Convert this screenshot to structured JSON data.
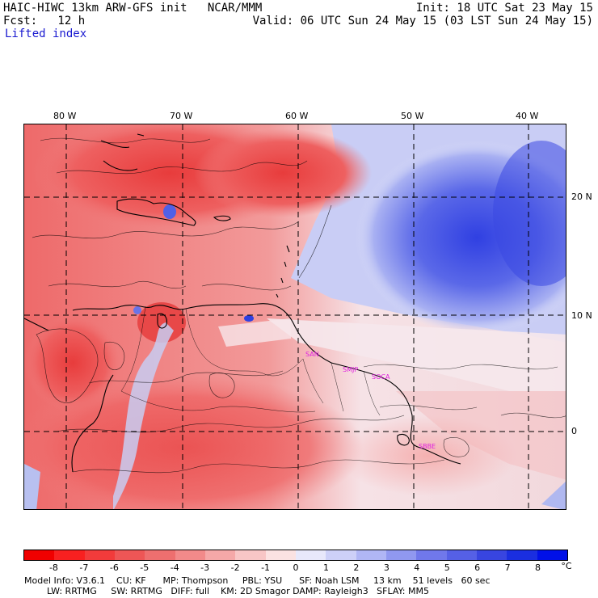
{
  "header": {
    "left1": "HAIC-HIWC 13km ARW-GFS init   NCAR/MMM",
    "left2": "Fcst:   12 h",
    "left3": "Lifted index",
    "right1": "Init: 18 UTC Sat 23 May 15",
    "right2": "Valid: 06 UTC Sun 24 May 15 (03 LST Sun 24 May 15)"
  },
  "map": {
    "lon_labels": [
      "80 W",
      "70 W",
      "60 W",
      "50 W",
      "40 W"
    ],
    "lat_labels": [
      "20 N",
      "10 N",
      "0"
    ],
    "cities": [
      "SAN",
      "SMJP",
      "SOCA",
      "SBBE"
    ],
    "colors": {
      "positive_strong": "#2a3ae0",
      "negative_strong": "#e83030",
      "neutral": "#f4f0f0",
      "city": "#e020e0"
    }
  },
  "colorbar": {
    "labels": [
      "-8",
      "-7",
      "-6",
      "-5",
      "-4",
      "-3",
      "-2",
      "-1",
      "0",
      "1",
      "2",
      "3",
      "4",
      "5",
      "6",
      "7",
      "8"
    ],
    "unit": "°C",
    "colors": [
      "#f00000",
      "#f82020",
      "#f23b3b",
      "#ee5656",
      "#ee6f6f",
      "#f28a8a",
      "#f5a8a8",
      "#f8c6c6",
      "#fbe2e2",
      "#e8e8fb",
      "#cdd0f8",
      "#b0b6f5",
      "#9098f0",
      "#7078eb",
      "#5560e6",
      "#3845e0",
      "#1a2ee0",
      "#0010e8"
    ]
  },
  "footer": {
    "line1": "Model Info: V3.6.1    CU: KF      MP: Thompson     PBL: YSU      SF: Noah LSM     13 km    51 levels   60 sec",
    "line2": "LW: RRTMG     SW: RRTMG   DIFF: full    KM: 2D Smagor DAMP: Rayleigh3   SFLAY: MM5"
  }
}
